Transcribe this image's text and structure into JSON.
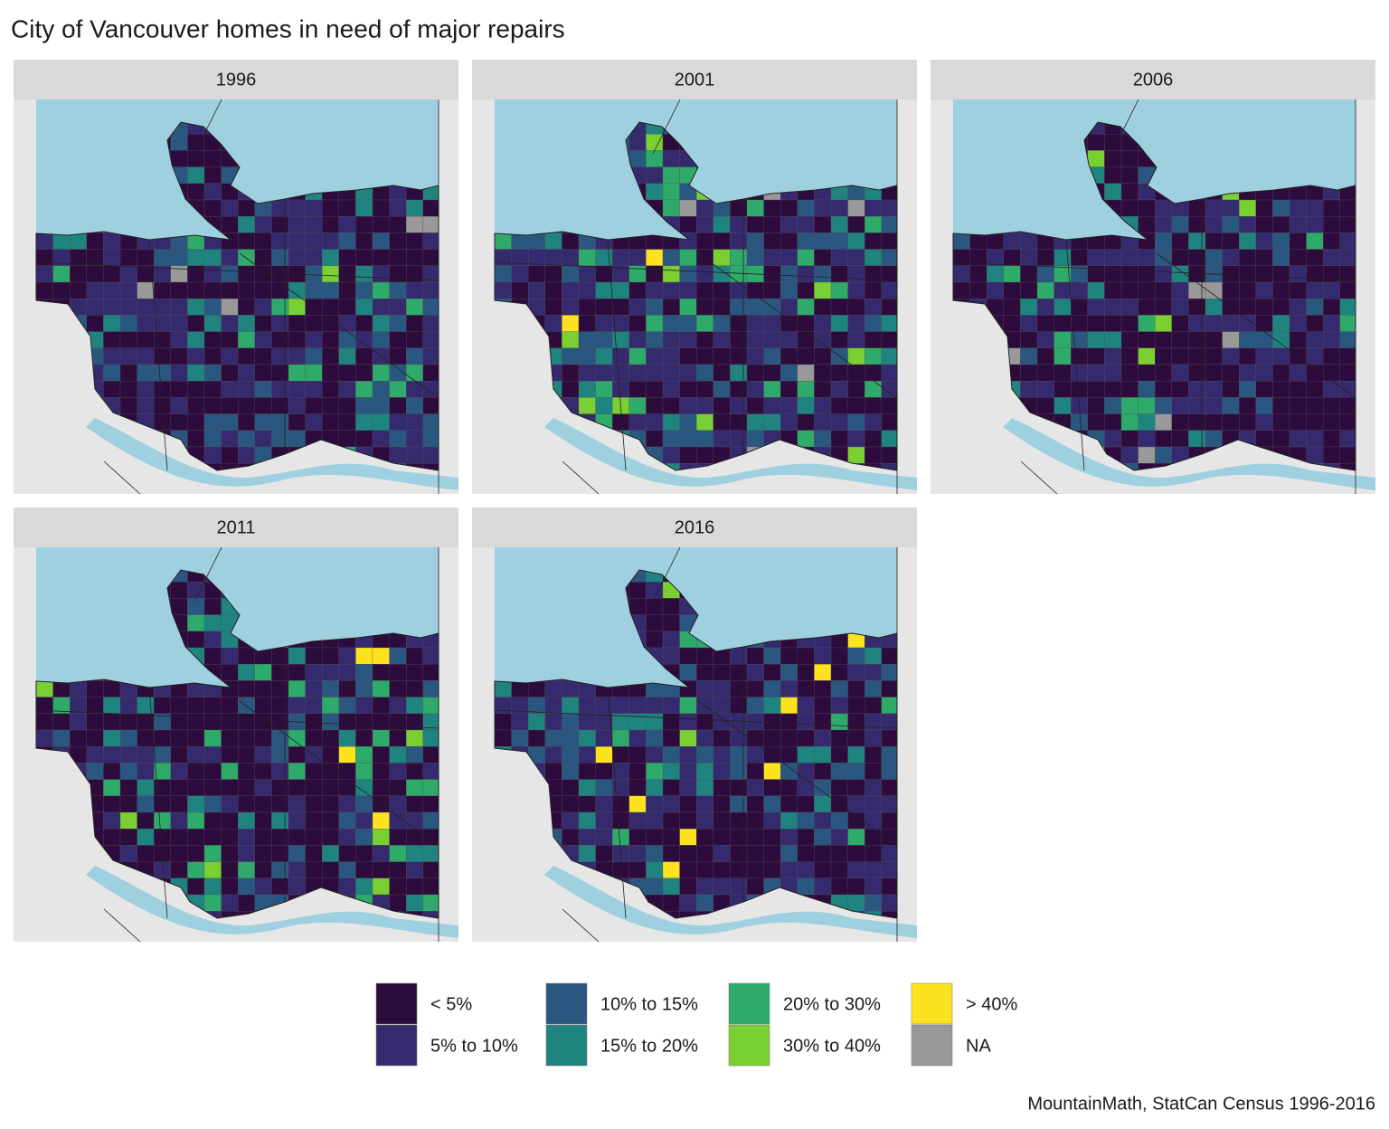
{
  "title": "City of Vancouver homes in need of major repairs",
  "panels": [
    {
      "label": "1996"
    },
    {
      "label": "2001"
    },
    {
      "label": "2006"
    },
    {
      "label": "2011"
    },
    {
      "label": "2016"
    }
  ],
  "legend": [
    {
      "label": "< 5%",
      "color": "#2e0b3d"
    },
    {
      "label": "5% to 10%",
      "color": "#352a6e"
    },
    {
      "label": "10% to 15%",
      "color": "#2a5780"
    },
    {
      "label": "15% to 20%",
      "color": "#1f8480"
    },
    {
      "label": "20% to 30%",
      "color": "#2eab6a"
    },
    {
      "label": "30% to 40%",
      "color": "#7ad032"
    },
    {
      "label": "> 40%",
      "color": "#fde31f"
    },
    {
      "label": "NA",
      "color": "#999999"
    }
  ],
  "caption": "MountainMath, StatCan Census 1996-2016"
}
